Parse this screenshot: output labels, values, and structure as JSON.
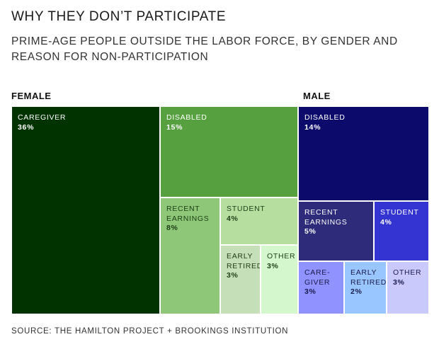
{
  "title": "WHY THEY DON’T PARTICIPATE",
  "subtitle": "PRIME-AGE PEOPLE OUTSIDE THE LABOR FORCE, BY GENDER AND REASON FOR NON-PARTICIPATION",
  "source": "SOURCE: THE HAMILTON PROJECT + BROOKINGS INSTITUTION",
  "chart_data": {
    "type": "treemap",
    "title": "WHY THEY DON’T PARTICIPATE",
    "subtitle": "PRIME-AGE PEOPLE OUTSIDE THE LABOR FORCE, BY GENDER AND REASON FOR NON-PARTICIPATION",
    "unit": "%",
    "groups": [
      {
        "name": "FEMALE",
        "items": [
          {
            "label": "CAREGIVER",
            "display_label": "CAREGIVER",
            "value": 36,
            "value_label": "36%",
            "color": "#003300",
            "text_color": "#ffffff"
          },
          {
            "label": "DISABLED",
            "display_label": "DISABLED",
            "value": 15,
            "value_label": "15%",
            "color": "#56a040",
            "text_color": "#ffffff"
          },
          {
            "label": "RECENT EARNINGS",
            "display_label": "RECENT\nEARNINGS",
            "value": 8,
            "value_label": "8%",
            "color": "#8dc777",
            "text_color": "#1e3d17"
          },
          {
            "label": "STUDENT",
            "display_label": "STUDENT",
            "value": 4,
            "value_label": "4%",
            "color": "#b6df9f",
            "text_color": "#1e3d17"
          },
          {
            "label": "EARLY RETIRED",
            "display_label": "EARLY\nRETIRED",
            "value": 3,
            "value_label": "3%",
            "color": "#c5e0b8",
            "text_color": "#1e3d17"
          },
          {
            "label": "OTHER",
            "display_label": "OTHER",
            "value": 3,
            "value_label": "3%",
            "color": "#d4f7cd",
            "text_color": "#1e3d17"
          }
        ]
      },
      {
        "name": "MALE",
        "items": [
          {
            "label": "DISABLED",
            "display_label": "DISABLED",
            "value": 14,
            "value_label": "14%",
            "color": "#0c0a6a",
            "text_color": "#ffffff"
          },
          {
            "label": "RECENT EARNINGS",
            "display_label": "RECENT\nEARNINGS",
            "value": 5,
            "value_label": "5%",
            "color": "#2d2b7a",
            "text_color": "#ffffff"
          },
          {
            "label": "STUDENT",
            "display_label": "STUDENT",
            "value": 4,
            "value_label": "4%",
            "color": "#3434d2",
            "text_color": "#ffffff"
          },
          {
            "label": "CAREGIVER",
            "display_label": "CARE-\nGIVER",
            "value": 3,
            "value_label": "3%",
            "color": "#8f92ff",
            "text_color": "#1a1a4a"
          },
          {
            "label": "EARLY RETIRED",
            "display_label": "EARLY\nRETIRED",
            "value": 2,
            "value_label": "2%",
            "color": "#99c6ff",
            "text_color": "#1a1a4a"
          },
          {
            "label": "OTHER",
            "display_label": "OTHER",
            "value": 3,
            "value_label": "3%",
            "color": "#c9cafb",
            "text_color": "#1a1a4a"
          }
        ]
      }
    ]
  }
}
